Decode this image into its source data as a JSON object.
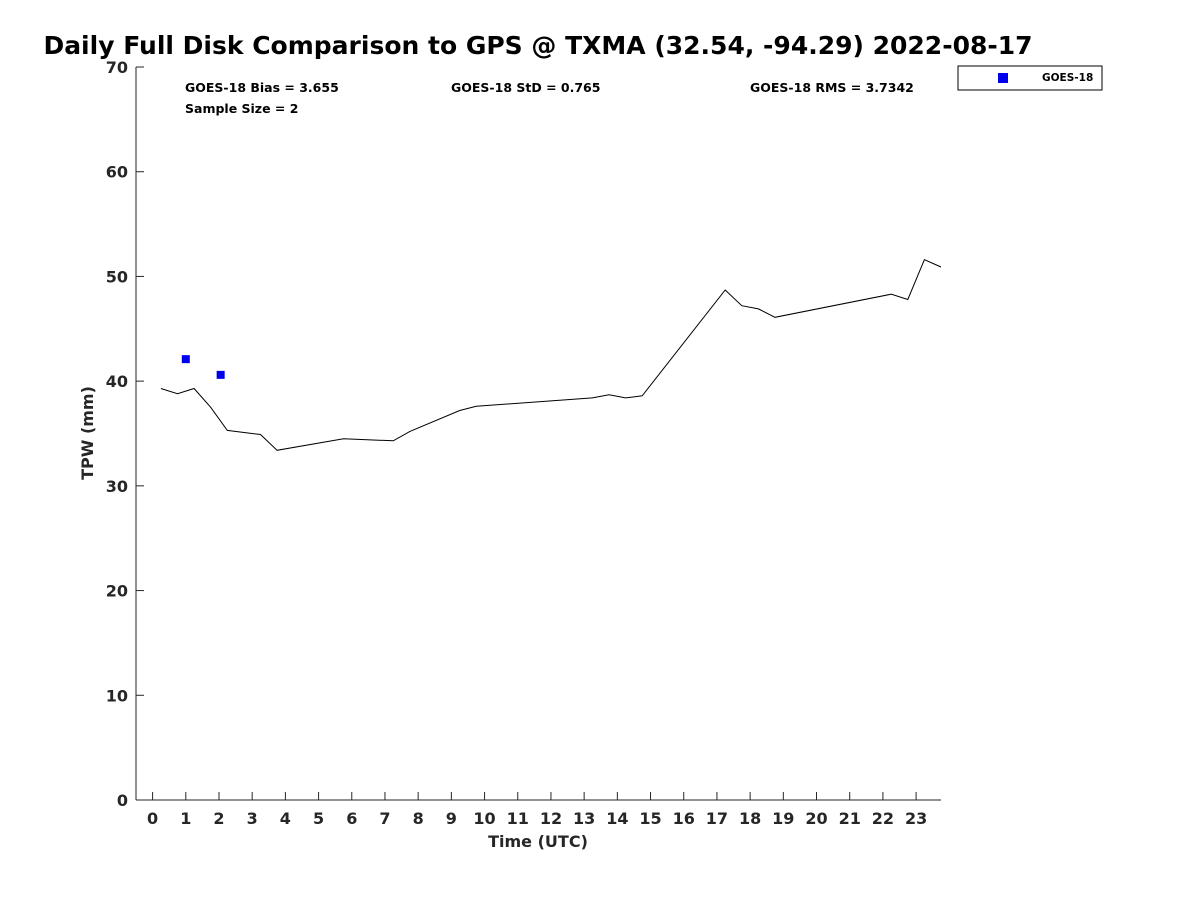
{
  "chart_data": {
    "type": "scatter",
    "title": "Daily Full Disk Comparison to GPS @ TXMA (32.54, -94.29) 2022-08-17",
    "xlabel": "Time (UTC)",
    "ylabel": "TPW (mm)",
    "xlim": [
      -0.5,
      23.75
    ],
    "ylim": [
      0,
      70
    ],
    "xticks": [
      "0",
      "1",
      "2",
      "3",
      "4",
      "5",
      "6",
      "7",
      "8",
      "9",
      "10",
      "11",
      "12",
      "13",
      "14",
      "15",
      "16",
      "17",
      "18",
      "19",
      "20",
      "21",
      "22",
      "23"
    ],
    "yticks": [
      "0",
      "10",
      "20",
      "30",
      "40",
      "50",
      "60",
      "70"
    ],
    "grid": false,
    "legend_position": "top-right, outside plot",
    "stats": {
      "bias": "GOES-18 Bias = 3.655",
      "std": "GOES-18 StD = 0.765",
      "rms": "GOES-18 RMS = 3.7342",
      "sample_size": "Sample Size = 2"
    },
    "series": [
      {
        "name": "GOES-18",
        "kind": "scatter",
        "marker": "square",
        "color": "#0000ee",
        "x": [
          1.0,
          2.05
        ],
        "y": [
          42.1,
          40.6
        ]
      },
      {
        "kind": "line",
        "color": "#000000",
        "x": [
          0.25,
          0.75,
          1.25,
          1.75,
          2.25,
          3.25,
          3.75,
          5.75,
          7.25,
          7.75,
          9.25,
          9.75,
          13.25,
          13.75,
          14.25,
          14.75,
          17.25,
          17.75,
          18.25,
          18.75,
          22.25,
          22.75,
          23.25,
          23.75
        ],
        "y": [
          39.3,
          38.8,
          39.3,
          37.5,
          35.3,
          34.9,
          33.4,
          34.5,
          34.3,
          35.2,
          37.2,
          37.6,
          38.4,
          38.7,
          38.4,
          38.6,
          48.7,
          47.2,
          46.9,
          46.1,
          48.3,
          47.8,
          51.6,
          50.9
        ]
      }
    ]
  }
}
